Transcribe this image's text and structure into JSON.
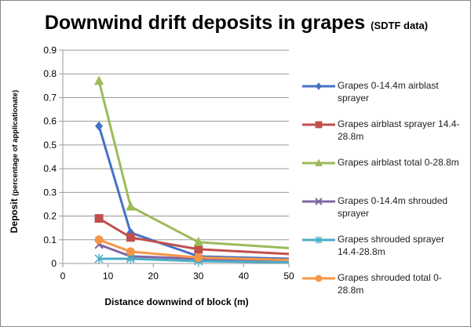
{
  "chart_data": {
    "type": "line",
    "title": "Downwind drift deposits in grapes",
    "subtitle": "(SDTF data)",
    "xlabel": "Distance downwind of block (m)",
    "ylabel": "Deposit",
    "ylabel_note": "(percentage of applicationate)",
    "xlim": [
      0,
      50
    ],
    "ylim": [
      0,
      0.9
    ],
    "xticks": [
      "0",
      "10",
      "20",
      "30",
      "40",
      "50"
    ],
    "yticks": [
      "0",
      "0.1",
      "0.2",
      "0.3",
      "0.4",
      "0.5",
      "0.6",
      "0.7",
      "0.8",
      "0.9"
    ],
    "grid": "horizontal",
    "legend_position": "right",
    "x": [
      8,
      15,
      30,
      50
    ],
    "series": [
      {
        "name": "Grapes 0-14.4m airblast sprayer",
        "color": "#4472C4",
        "marker": "diamond",
        "values": [
          0.58,
          0.13,
          0.03,
          0.02
        ]
      },
      {
        "name": "Grapes airblast  sprayer 14.4-28.8m",
        "color": "#C0504D",
        "marker": "square",
        "values": [
          0.19,
          0.11,
          0.06,
          0.04
        ]
      },
      {
        "name": "Grapes airblast  total 0-28.8m",
        "color": "#9BBB59",
        "marker": "triangle",
        "values": [
          0.77,
          0.24,
          0.09,
          0.065
        ]
      },
      {
        "name": "Grapes 0-14.4m shrouded sprayer",
        "color": "#8064A2",
        "marker": "x",
        "values": [
          0.08,
          0.03,
          0.02,
          0.01
        ]
      },
      {
        "name": "Grapes shrouded sprayer 14.4-28.8m",
        "color": "#4BACC6",
        "marker": "star",
        "values": [
          0.02,
          0.02,
          0.01,
          0.005
        ]
      },
      {
        "name": "Grapes shrouded  total 0-28.8m",
        "color": "#F79646",
        "marker": "circle",
        "values": [
          0.1,
          0.05,
          0.025,
          0.015
        ]
      }
    ]
  }
}
